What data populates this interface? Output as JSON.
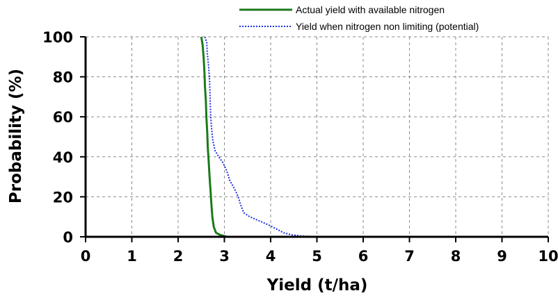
{
  "chart_data": {
    "type": "line",
    "xlabel": "Yield (t/ha)",
    "ylabel": "Probability (%)",
    "xlim": [
      0,
      10
    ],
    "ylim": [
      0,
      100
    ],
    "x_ticks": [
      "0",
      "1",
      "2",
      "3",
      "4",
      "5",
      "6",
      "7",
      "8",
      "9",
      "10"
    ],
    "y_ticks": [
      "0",
      "20",
      "40",
      "60",
      "80",
      "100"
    ],
    "grid": true,
    "legend_position": "top-right",
    "series": [
      {
        "name": "Actual yield with available nitrogen",
        "color": "#1a7a1a",
        "style": "solid",
        "points": [
          [
            2.5,
            100
          ],
          [
            2.53,
            96
          ],
          [
            2.55,
            90
          ],
          [
            2.57,
            82
          ],
          [
            2.58,
            75
          ],
          [
            2.6,
            68
          ],
          [
            2.61,
            60
          ],
          [
            2.63,
            52
          ],
          [
            2.64,
            45
          ],
          [
            2.66,
            38
          ],
          [
            2.68,
            30
          ],
          [
            2.7,
            23
          ],
          [
            2.72,
            16
          ],
          [
            2.74,
            10
          ],
          [
            2.77,
            5
          ],
          [
            2.82,
            2
          ],
          [
            2.9,
            1
          ],
          [
            3.05,
            0
          ]
        ]
      },
      {
        "name": "Yield when nitrogen non limiting (potential)",
        "color": "#1a2ee8",
        "style": "dotted",
        "points": [
          [
            2.58,
            100
          ],
          [
            2.62,
            97
          ],
          [
            2.63,
            92
          ],
          [
            2.66,
            85
          ],
          [
            2.68,
            78
          ],
          [
            2.69,
            70
          ],
          [
            2.7,
            62
          ],
          [
            2.72,
            55
          ],
          [
            2.75,
            48
          ],
          [
            2.8,
            43
          ],
          [
            2.88,
            40
          ],
          [
            2.97,
            37
          ],
          [
            3.05,
            33
          ],
          [
            3.12,
            28
          ],
          [
            3.22,
            24
          ],
          [
            3.3,
            20
          ],
          [
            3.35,
            16
          ],
          [
            3.42,
            12
          ],
          [
            3.55,
            10
          ],
          [
            3.75,
            8
          ],
          [
            3.95,
            6
          ],
          [
            4.12,
            4
          ],
          [
            4.28,
            2
          ],
          [
            4.45,
            1
          ],
          [
            4.65,
            0.4
          ],
          [
            5.05,
            0
          ]
        ]
      }
    ]
  }
}
